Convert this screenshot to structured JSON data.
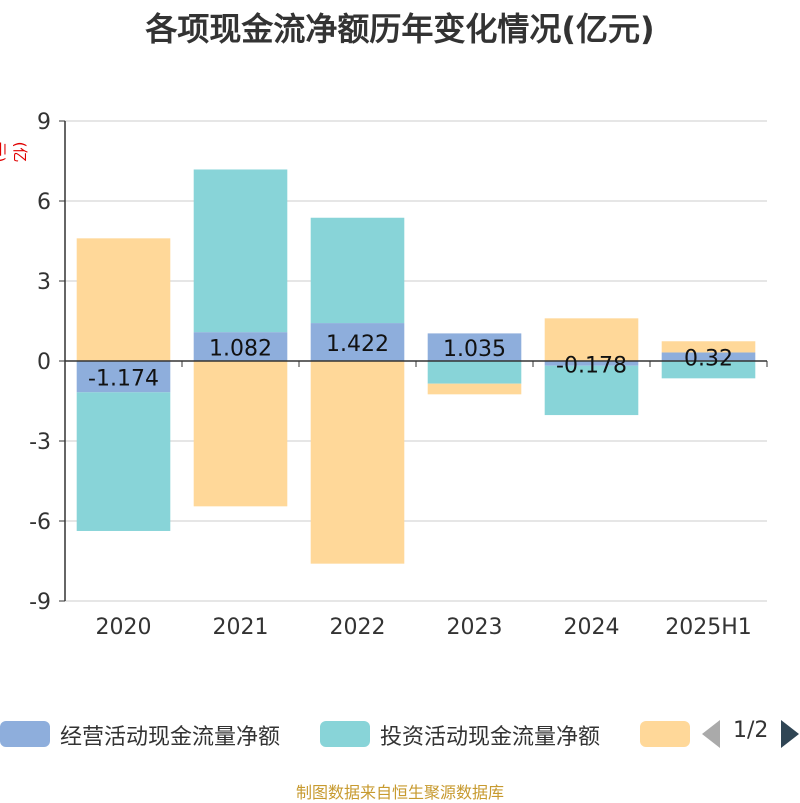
{
  "chart_data": {
    "type": "bar",
    "title": "各项现金流净额历年变化情况(亿元)",
    "unit_label": "(亿元)",
    "categories": [
      "2020",
      "2021",
      "2022",
      "2023",
      "2024",
      "2025H1"
    ],
    "stacked": true,
    "ylim": [
      -9,
      9
    ],
    "yticks": [
      9,
      6,
      3,
      0,
      -3,
      -6,
      -9
    ],
    "grid": true,
    "series": [
      {
        "name": "经营活动现金流量净额",
        "color": "#8eaedc",
        "values": [
          -1.174,
          1.082,
          1.422,
          1.035,
          -0.178,
          0.32
        ],
        "labels": [
          "-1.174",
          "1.082",
          "1.422",
          "1.035",
          "-0.178",
          "0.32"
        ]
      },
      {
        "name": "投资活动现金流量净额",
        "color": "#88d4d8",
        "values": [
          -5.2,
          6.1,
          3.95,
          -0.85,
          -1.85,
          -0.65
        ]
      },
      {
        "name": "",
        "color": "#ffd899",
        "values": [
          4.6,
          -5.45,
          -7.6,
          -0.4,
          1.6,
          0.42
        ]
      }
    ],
    "legend_position": "bottom",
    "legend_page": "1/2",
    "source": "制图数据来自恒生聚源数据库"
  }
}
